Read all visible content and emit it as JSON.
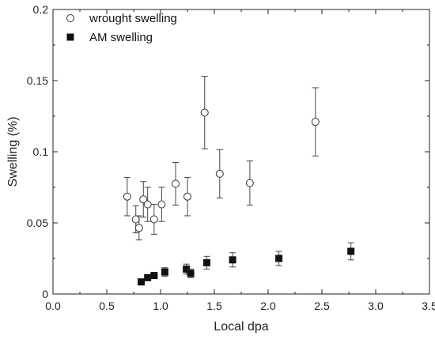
{
  "chart_data": {
    "type": "scatter",
    "xlabel": "Local dpa",
    "ylabel": "Swelling (%)",
    "xlim": [
      0.0,
      3.5
    ],
    "ylim": [
      0,
      0.2
    ],
    "x_ticks": [
      "0.0",
      "0.5",
      "1.0",
      "1.5",
      "2.0",
      "2.5",
      "3.0",
      "3.5"
    ],
    "y_ticks": [
      "0",
      "0.05",
      "0.1",
      "0.15",
      "0.2"
    ],
    "grid": false,
    "legend_position": "top-left",
    "series": [
      {
        "name": "wrought swelling",
        "marker": "open-circle",
        "color": "#333333",
        "points": [
          {
            "x": 0.69,
            "y": 0.0685,
            "err": 0.0135
          },
          {
            "x": 0.77,
            "y": 0.0525,
            "err": 0.0095
          },
          {
            "x": 0.8,
            "y": 0.0465,
            "err": 0.0085
          },
          {
            "x": 0.84,
            "y": 0.0665,
            "err": 0.0125
          },
          {
            "x": 0.88,
            "y": 0.063,
            "err": 0.012
          },
          {
            "x": 0.94,
            "y": 0.0525,
            "err": 0.0105
          },
          {
            "x": 1.01,
            "y": 0.063,
            "err": 0.012
          },
          {
            "x": 1.14,
            "y": 0.0775,
            "err": 0.015
          },
          {
            "x": 1.25,
            "y": 0.0685,
            "err": 0.0135
          },
          {
            "x": 1.41,
            "y": 0.1275,
            "err": 0.0255
          },
          {
            "x": 1.55,
            "y": 0.0845,
            "err": 0.017
          },
          {
            "x": 1.83,
            "y": 0.078,
            "err": 0.0155
          },
          {
            "x": 2.44,
            "y": 0.121,
            "err": 0.024
          }
        ]
      },
      {
        "name": "AM swelling",
        "marker": "filled-square",
        "color": "#111111",
        "points": [
          {
            "x": 0.82,
            "y": 0.0085,
            "err": 0.0
          },
          {
            "x": 0.88,
            "y": 0.0115,
            "err": 0.0015
          },
          {
            "x": 0.94,
            "y": 0.013,
            "err": 0.002
          },
          {
            "x": 1.04,
            "y": 0.0155,
            "err": 0.003
          },
          {
            "x": 1.24,
            "y": 0.0175,
            "err": 0.0035
          },
          {
            "x": 1.28,
            "y": 0.0145,
            "err": 0.003
          },
          {
            "x": 1.43,
            "y": 0.022,
            "err": 0.0045
          },
          {
            "x": 1.67,
            "y": 0.024,
            "err": 0.005
          },
          {
            "x": 2.1,
            "y": 0.025,
            "err": 0.005
          },
          {
            "x": 2.77,
            "y": 0.03,
            "err": 0.006
          }
        ]
      }
    ]
  }
}
